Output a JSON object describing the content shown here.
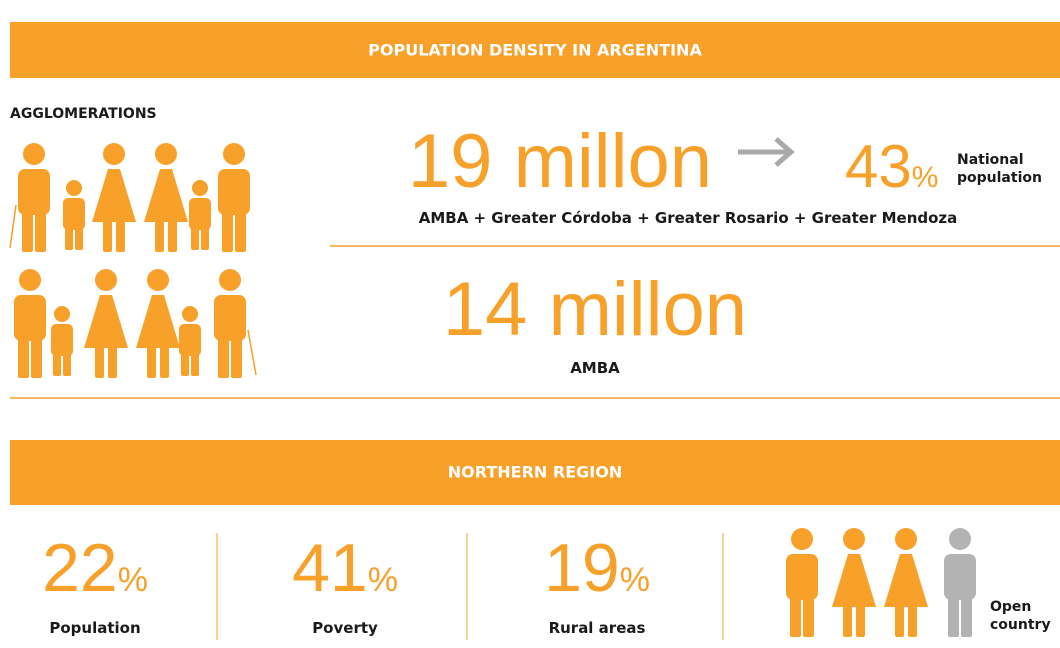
{
  "header": {
    "title": "POPULATION DENSITY IN ARGENTINA"
  },
  "agglomerations": {
    "label": "AGGLOMERATIONS",
    "top": {
      "value": 19,
      "unit": "millon",
      "share": {
        "value": 43,
        "unit": "%",
        "label_line1": "National",
        "label_line2": "population"
      },
      "caption": "AMBA + Greater Córdoba + Greater Rosario + Greater Mendoza"
    },
    "bottom": {
      "value": 14,
      "unit": "millon",
      "caption": "AMBA"
    }
  },
  "region": {
    "title": "NORTHERN REGION",
    "stats": [
      {
        "value": 22,
        "unit": "%",
        "label": "Population"
      },
      {
        "value": 41,
        "unit": "%",
        "label": "Poverty"
      },
      {
        "value": 19,
        "unit": "%",
        "label": "Rural areas"
      }
    ],
    "icon_label_line1": "Open",
    "icon_label_line2": "country"
  }
}
